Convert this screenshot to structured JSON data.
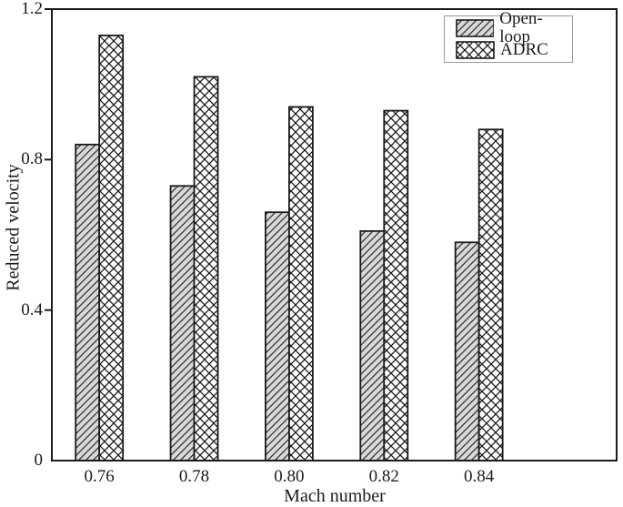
{
  "chart_data": {
    "type": "bar",
    "title": "",
    "xlabel": "Mach number",
    "ylabel": "Reduced velocity",
    "categories": [
      "0.76",
      "0.78",
      "0.80",
      "0.82",
      "0.84"
    ],
    "category_values": [
      0.76,
      0.78,
      0.8,
      0.82,
      0.84
    ],
    "series": [
      {
        "name": "Open-loop",
        "values": [
          0.84,
          0.73,
          0.66,
          0.61,
          0.58
        ],
        "fill": "#d9d9d9",
        "hatch": "diagonal"
      },
      {
        "name": "ADRC",
        "values": [
          1.13,
          1.02,
          0.94,
          0.93,
          0.88
        ],
        "fill": "#ffffff",
        "hatch": "cross"
      }
    ],
    "ylim": [
      0,
      1.2
    ],
    "xlim": [
      0.75,
      0.869
    ],
    "yticks": [
      "0",
      "0.4",
      "0.8",
      "1.2"
    ],
    "ytick_values": [
      0,
      0.4,
      0.8,
      1.2
    ],
    "grid": false,
    "legend_position": "top-right",
    "colors": {
      "axis": "#1a1a1a",
      "bar_edge": "#1a1a1a",
      "hatch_line": "#333333",
      "openloop_fill": "#d9d9d9",
      "adrc_fill": "#ffffff",
      "legend_border": "#999999",
      "text": "#1a1a1a"
    }
  }
}
